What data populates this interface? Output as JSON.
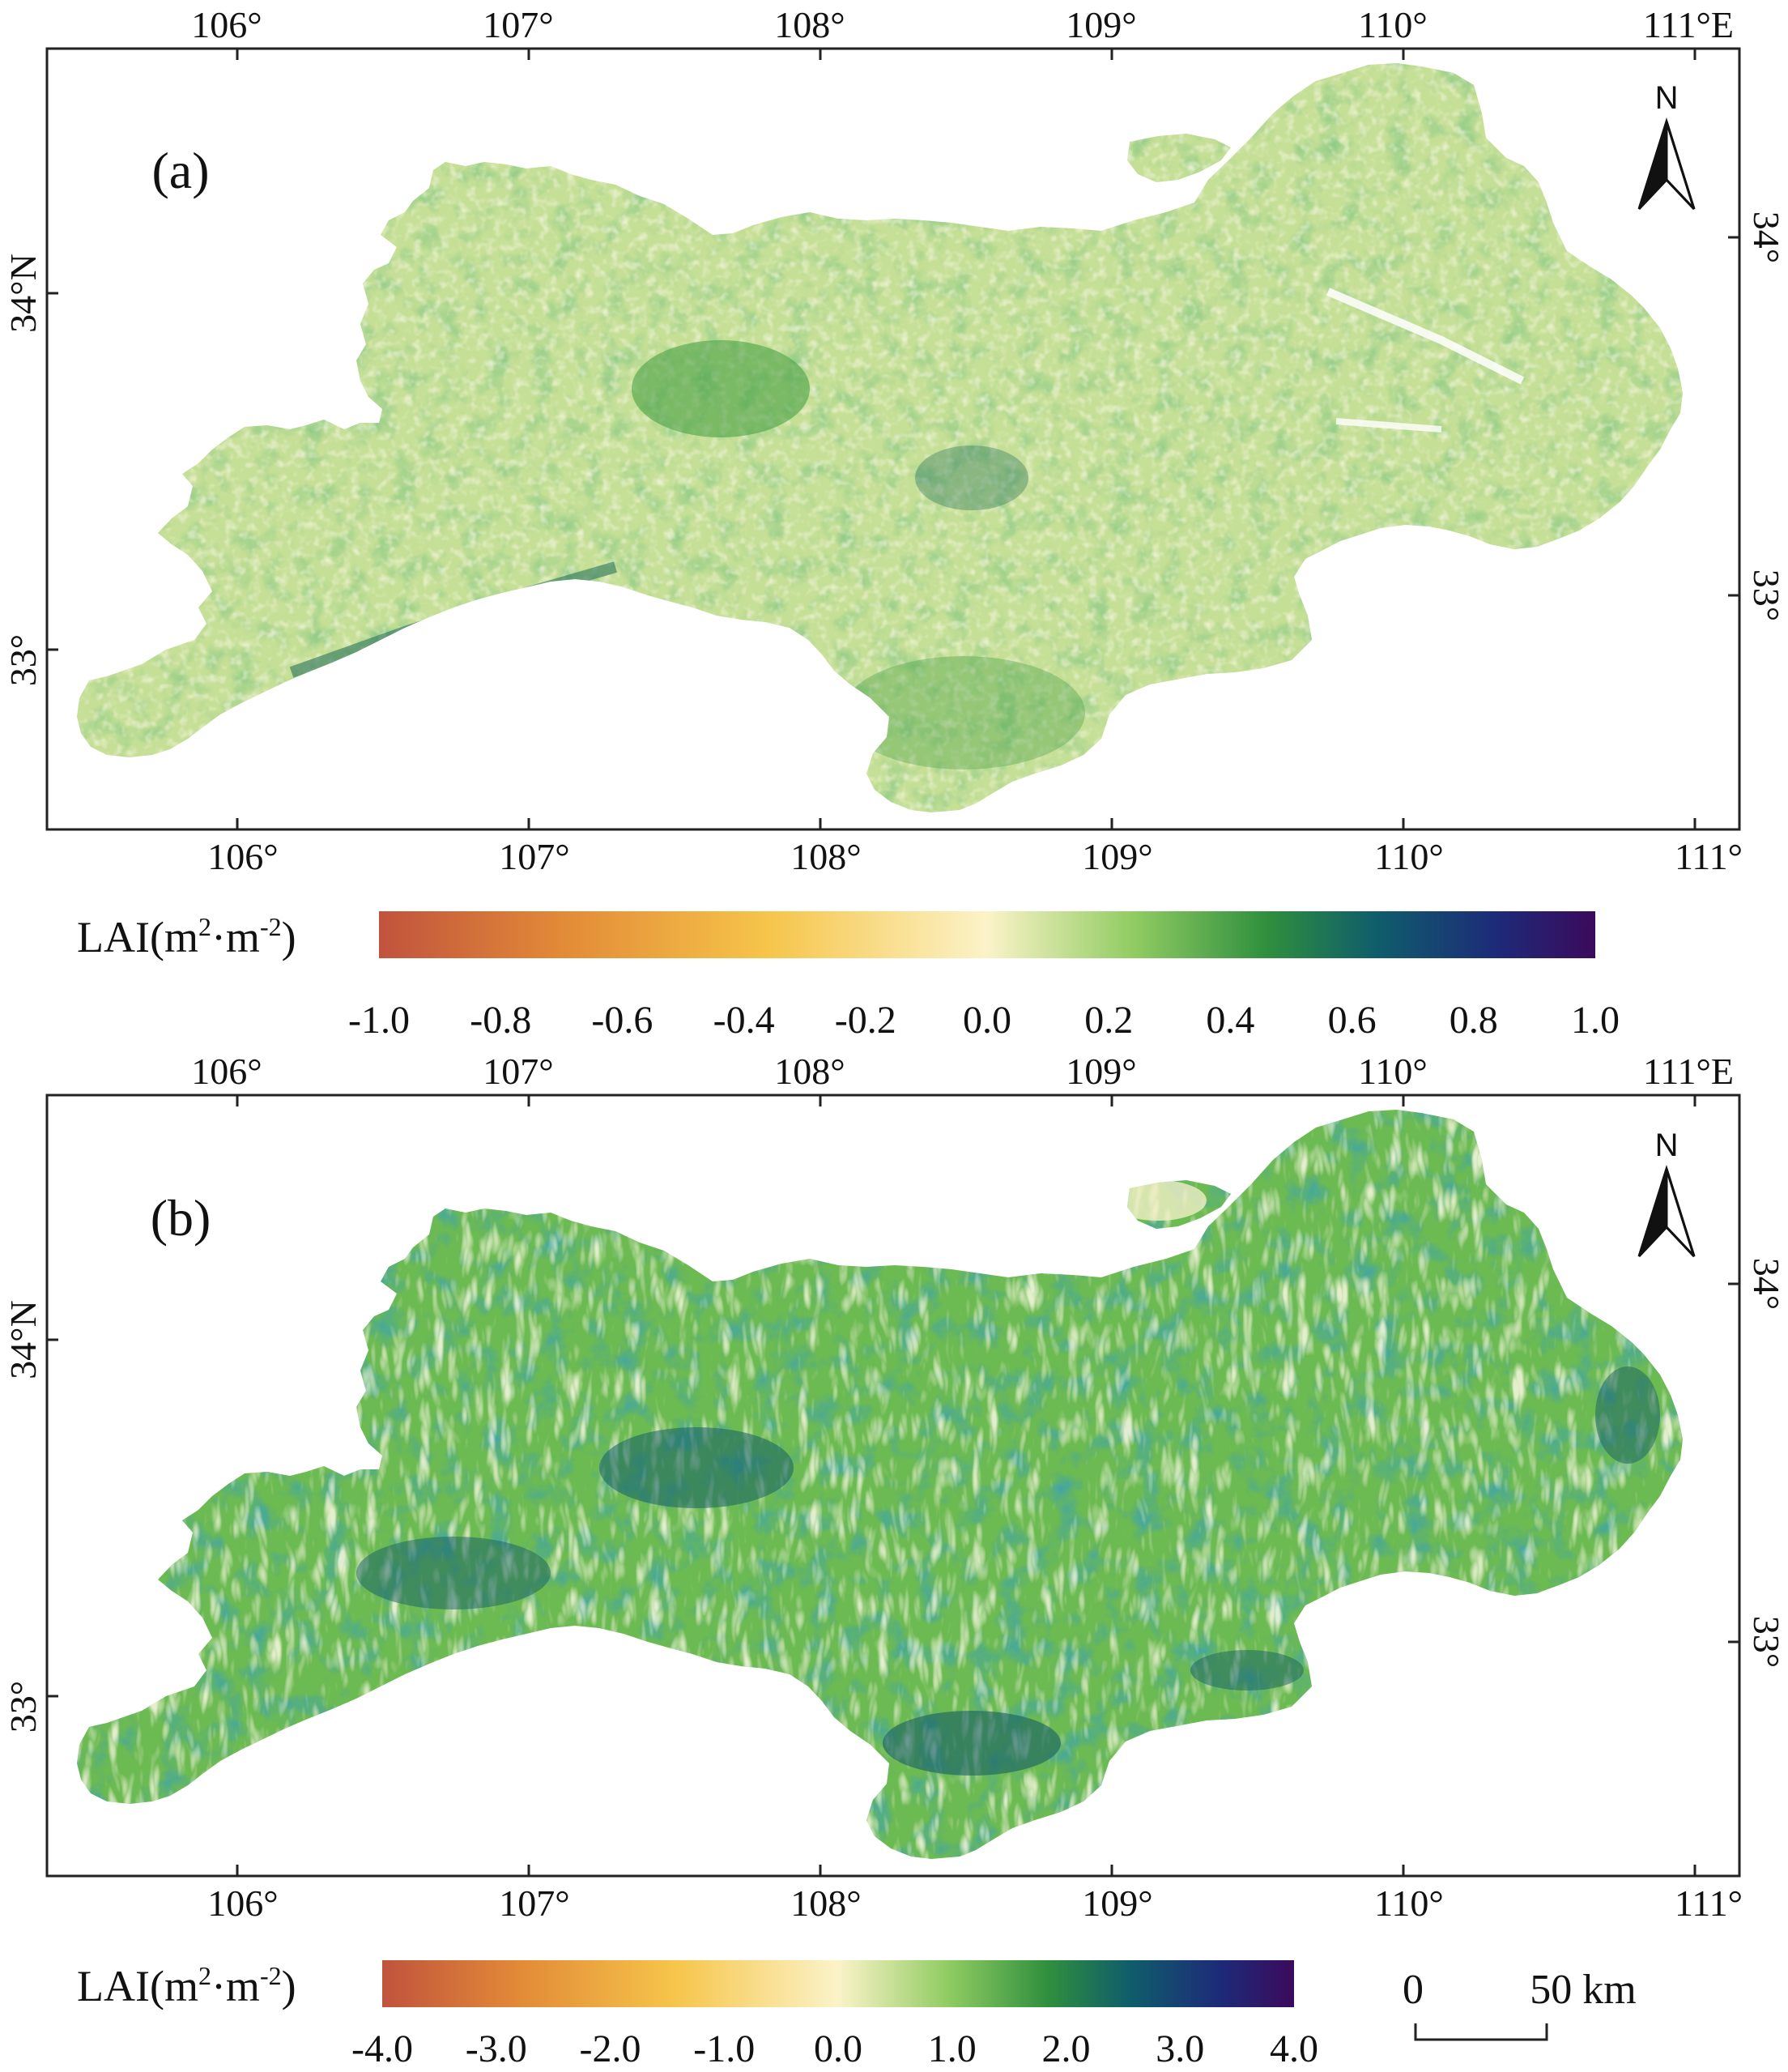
{
  "panels": [
    {
      "id": "a",
      "label": "(a)",
      "top_lon_labels": [
        "106°",
        "107°",
        "108°",
        "109°",
        "110°",
        "111°E"
      ],
      "bottom_lon_labels": [
        "106°",
        "107°",
        "108°",
        "109°",
        "110°",
        "111°"
      ],
      "left_lat_labels": [
        "34°N",
        "33°"
      ],
      "right_lat_labels": [
        "34°",
        "33°"
      ],
      "north_arrow": "N",
      "map_colors": {
        "light": "#f3f0bf",
        "mid": "#8dc963",
        "strong": "#3e9a3e",
        "deep": "#1c6a58"
      },
      "colorbar": {
        "title": "LAI(m²·m⁻²)",
        "title_base": "LAI(m",
        "title_sup1": "2",
        "title_mid": "·m",
        "title_sup2": "-2",
        "title_end": ")",
        "ticks": [
          "-1.0",
          "-0.8",
          "-0.6",
          "-0.4",
          "-0.2",
          "0.0",
          "0.2",
          "0.4",
          "0.6",
          "0.8",
          "1.0"
        ],
        "range": [
          -1.0,
          1.0
        ]
      }
    },
    {
      "id": "b",
      "label": "(b)",
      "top_lon_labels": [
        "106°",
        "107°",
        "108°",
        "109°",
        "110°",
        "111°E"
      ],
      "bottom_lon_labels": [
        "106°",
        "107°",
        "108°",
        "109°",
        "110°",
        "111°"
      ],
      "left_lat_labels": [
        "34°N",
        "33°"
      ],
      "right_lat_labels": [
        "34°",
        "33°"
      ],
      "north_arrow": "N",
      "map_colors": {
        "light": "#f1efc4",
        "mid": "#6cba52",
        "strong": "#2f8c3b",
        "deep": "#165e66"
      },
      "colorbar": {
        "title": "LAI(m²·m⁻²)",
        "title_base": "LAI(m",
        "title_sup1": "2",
        "title_mid": "·m",
        "title_sup2": "-2",
        "title_end": ")",
        "ticks": [
          "-4.0",
          "-3.0",
          "-2.0",
          "-1.0",
          "0.0",
          "1.0",
          "2.0",
          "3.0",
          "4.0"
        ],
        "range": [
          -4.0,
          4.0
        ]
      }
    }
  ],
  "scale_bar": {
    "zero": "0",
    "distance": "50 km"
  },
  "colormap_stops": [
    "#c0533d",
    "#e28a37",
    "#f6c54a",
    "#fbf3c8",
    "#91cc63",
    "#2f8f3d",
    "#0f5d6b",
    "#1d2a78",
    "#3c0a5c"
  ]
}
